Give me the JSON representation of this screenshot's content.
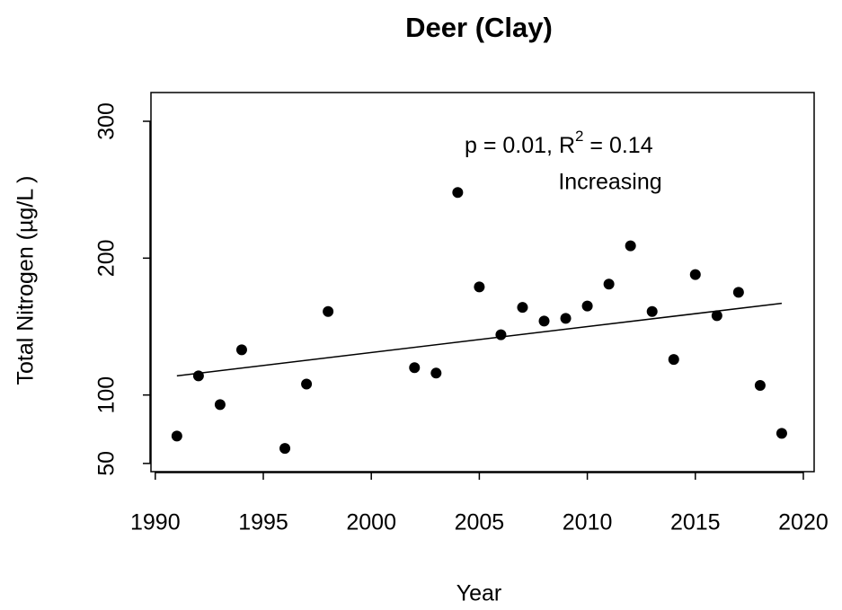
{
  "chart_data": {
    "type": "scatter",
    "title": "Deer (Clay)",
    "x_label": "Year",
    "y_label": "Total Nitrogen (µg/L )",
    "annotation": {
      "text": "p = 0.01, R",
      "superscript": "2",
      "text_after": " = 0.14"
    },
    "trend_label": "Increasing",
    "x": [
      1991,
      1992,
      1993,
      1994,
      1996,
      1997,
      1998,
      2002,
      2003,
      2004,
      2005,
      2006,
      2007,
      2008,
      2009,
      2010,
      2011,
      2012,
      2013,
      2014,
      2015,
      2016,
      2017,
      2018,
      2019
    ],
    "values": [
      70,
      114,
      93,
      133,
      61,
      108,
      161,
      120,
      116,
      248,
      179,
      144,
      164,
      154,
      156,
      165,
      181,
      209,
      161,
      126,
      188,
      158,
      175,
      107,
      72
    ],
    "color": "#000000",
    "trend": {
      "x": [
        1991,
        2019
      ],
      "y": [
        114,
        167
      ]
    },
    "xlim": [
      1989.8,
      2020.5
    ],
    "ylim": [
      44,
      321
    ],
    "xticks": [
      1990,
      1995,
      2000,
      2005,
      2010,
      2015,
      2020
    ],
    "yticks": [
      50,
      100,
      200,
      300
    ]
  }
}
